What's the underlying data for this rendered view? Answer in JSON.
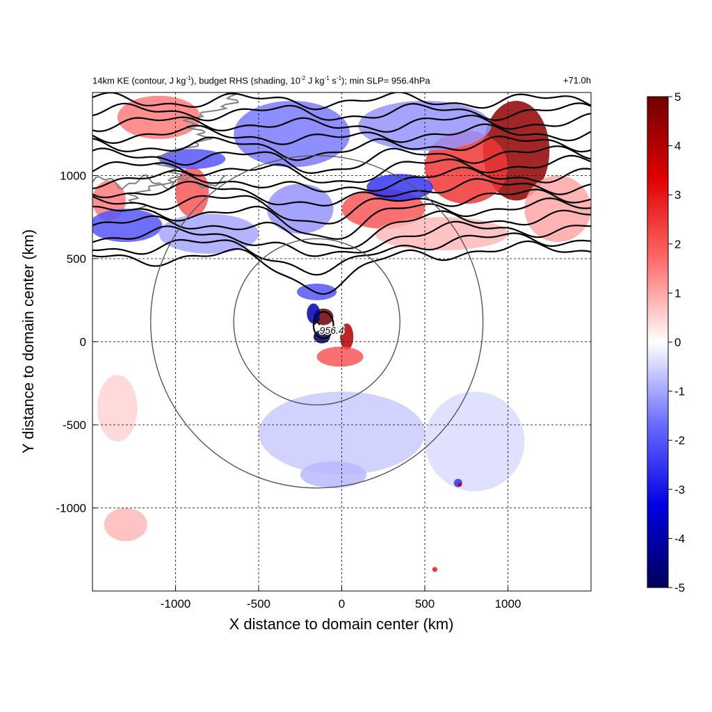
{
  "chart_data": {
    "type": "heatmap",
    "title_parts": {
      "a": "14km KE (contour, J kg",
      "a_sup": "-1",
      "b": "), budget RHS (shading, 10",
      "b_sup": "-2",
      "c": " J kg",
      "c_sup": "-1",
      "d": " s",
      "d_sup": "-1",
      "e": "); min SLP= 956.4hPa"
    },
    "time_label": "+71.0h",
    "xlabel": "X distance to domain center (km)",
    "ylabel": "Y distance to domain center (km)",
    "xlim": [
      -1500,
      1500
    ],
    "ylim": [
      -1500,
      1500
    ],
    "x_ticks": [
      -1000,
      -500,
      0,
      500,
      1000
    ],
    "y_ticks": [
      -1000,
      -500,
      0,
      500,
      1000
    ],
    "grid": true,
    "colorbar": {
      "range": [
        -5,
        5
      ],
      "ticks": [
        5,
        4,
        3,
        2,
        1,
        0,
        -1,
        -2,
        -3,
        -4,
        -5
      ],
      "colors": [
        "#00005a",
        "#0000e0",
        "#6b6bff",
        "#ffffff",
        "#ff6b6b",
        "#e00000",
        "#700000"
      ]
    },
    "storm_center": {
      "x": -150,
      "y": 120,
      "label": "956.4"
    },
    "circles": [
      {
        "x": -150,
        "y": 120,
        "r": 500
      },
      {
        "x": -150,
        "y": 120,
        "r": 1000
      }
    ],
    "shading_regions": [
      {
        "x": 1050,
        "y": 1150,
        "rx": 200,
        "ry": 300,
        "value": 4.5
      },
      {
        "x": 750,
        "y": 1050,
        "rx": 250,
        "ry": 220,
        "value": 2.5
      },
      {
        "x": 250,
        "y": 800,
        "rx": 250,
        "ry": 120,
        "value": 2.0
      },
      {
        "x": -900,
        "y": 900,
        "rx": 100,
        "ry": 150,
        "value": 2.0
      },
      {
        "x": -1400,
        "y": 850,
        "rx": 100,
        "ry": 120,
        "value": 1.5
      },
      {
        "x": -1100,
        "y": 1350,
        "rx": 250,
        "ry": 130,
        "value": 1.5
      },
      {
        "x": -900,
        "y": 1100,
        "rx": 200,
        "ry": 60,
        "value": -2.0
      },
      {
        "x": -1300,
        "y": 700,
        "rx": 220,
        "ry": 100,
        "value": -2.0
      },
      {
        "x": -300,
        "y": 1250,
        "rx": 350,
        "ry": 200,
        "value": -1.5
      },
      {
        "x": 350,
        "y": 930,
        "rx": 200,
        "ry": 80,
        "value": -2.5
      },
      {
        "x": 500,
        "y": 1300,
        "rx": 400,
        "ry": 150,
        "value": -1.2
      },
      {
        "x": -250,
        "y": 800,
        "rx": 200,
        "ry": 150,
        "value": -1.2
      },
      {
        "x": -800,
        "y": 650,
        "rx": 300,
        "ry": 120,
        "value": -1.0
      },
      {
        "x": 1300,
        "y": 800,
        "rx": 200,
        "ry": 200,
        "value": 1.0
      },
      {
        "x": 600,
        "y": 650,
        "rx": 400,
        "ry": 100,
        "value": 0.8
      },
      {
        "x": -1300,
        "y": -1100,
        "rx": 130,
        "ry": 100,
        "value": 0.8
      },
      {
        "x": -1350,
        "y": -400,
        "rx": 120,
        "ry": 200,
        "value": 0.5
      },
      {
        "x": 0,
        "y": -550,
        "rx": 500,
        "ry": 250,
        "value": -0.6
      },
      {
        "x": -50,
        "y": -800,
        "rx": 200,
        "ry": 80,
        "value": -0.8
      },
      {
        "x": 800,
        "y": -600,
        "rx": 300,
        "ry": 300,
        "value": -0.4
      },
      {
        "x": 700,
        "y": -850,
        "rx": 25,
        "ry": 25,
        "value": -2.5
      },
      {
        "x": 710,
        "y": -860,
        "rx": 12,
        "ry": 12,
        "value": 4.0
      },
      {
        "x": 560,
        "y": -1370,
        "rx": 15,
        "ry": 15,
        "value": 3.0
      },
      {
        "x": -110,
        "y": 150,
        "rx": 60,
        "ry": 50,
        "value": 5.0
      },
      {
        "x": 30,
        "y": 30,
        "rx": 40,
        "ry": 80,
        "value": 4.0
      },
      {
        "x": -120,
        "y": 30,
        "rx": 50,
        "ry": 40,
        "value": -5.0
      },
      {
        "x": -170,
        "y": 170,
        "rx": 40,
        "ry": 60,
        "value": -4.0
      },
      {
        "x": -10,
        "y": -90,
        "rx": 140,
        "ry": 60,
        "value": 2.0
      },
      {
        "x": -150,
        "y": 300,
        "rx": 120,
        "ry": 50,
        "value": -2.0
      }
    ],
    "contour_levels_ke": 15
  }
}
